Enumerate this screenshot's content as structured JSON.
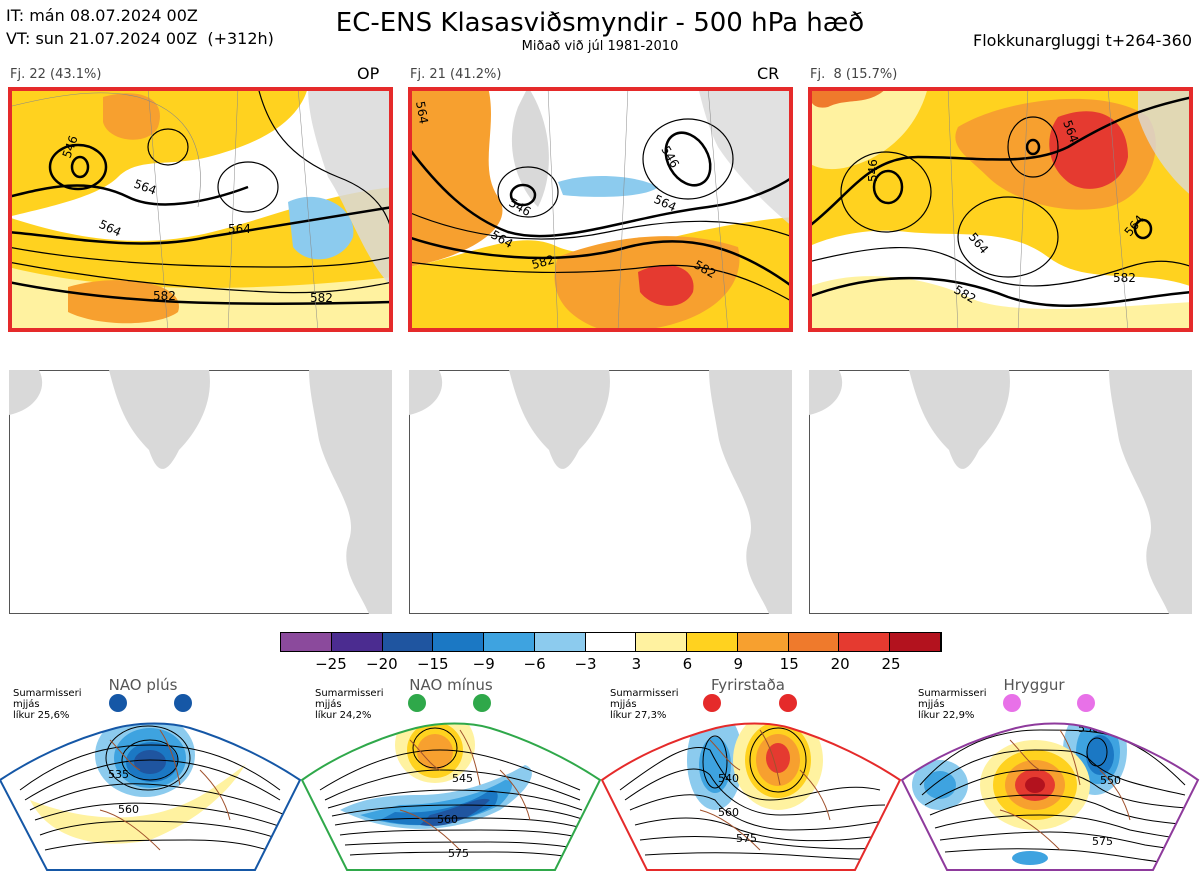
{
  "header": {
    "it_line": "IT: mán 08.07.2024 00Z",
    "vt_line": "VT: sun 21.07.2024 00Z  (+312h)",
    "title": "EC-ENS Klasasviðsmyndir - 500 hPa hæð",
    "subtitle": "Miðað við júl 1981-2010",
    "window": "Flokkunargluggi t+264-360"
  },
  "panels": [
    {
      "label": "Fj. 22 (43.1%)",
      "tag": "OP",
      "contours": [
        "546",
        "564",
        "564",
        "582",
        "582",
        "564"
      ]
    },
    {
      "label": "Fj. 21 (41.2%)",
      "tag": "CR",
      "contours": [
        "546",
        "546",
        "564",
        "564",
        "582",
        "582",
        "564"
      ]
    },
    {
      "label": "Fj.  8 (15.7%)",
      "tag": "",
      "contours": [
        "546",
        "564",
        "564",
        "564",
        "582",
        "582"
      ]
    }
  ],
  "colorbar": {
    "ticks": [
      "−25",
      "−20",
      "−15",
      "−9",
      "−6",
      "−3",
      "3",
      "6",
      "9",
      "15",
      "20",
      "25"
    ],
    "colors": [
      "#8b4a9c",
      "#4b2c90",
      "#1f55a0",
      "#1b78c4",
      "#3ea3e0",
      "#8ccbee",
      "#ffffff",
      "#fff2a0",
      "#ffd21f",
      "#f7a02f",
      "#ef7a2c",
      "#e53a30",
      "#b3121e"
    ]
  },
  "regimes": [
    {
      "name": "NAO plús",
      "season": "Sumarmisseri",
      "label2": "mjjás",
      "prob": "líkur 25,6%",
      "color": "#1557a6",
      "contours": [
        "535",
        "560"
      ]
    },
    {
      "name": "NAO mínus",
      "season": "Sumarmisseri",
      "label2": "mjjás",
      "prob": "líkur 24,2%",
      "color": "#2fa84a",
      "contours": [
        "545",
        "560",
        "575"
      ]
    },
    {
      "name": "Fyrirstaða",
      "season": "Sumarmisseri",
      "label2": "mjjás",
      "prob": "líkur 27,3%",
      "color": "#e52a2a",
      "contours": [
        "540",
        "560",
        "575"
      ]
    },
    {
      "name": "Hryggur",
      "season": "Sumarmisseri",
      "label2": "mjjás",
      "prob": "líkur 22,9%",
      "color": "#8e3a9c",
      "contours": [
        "530",
        "550",
        "575"
      ]
    }
  ]
}
